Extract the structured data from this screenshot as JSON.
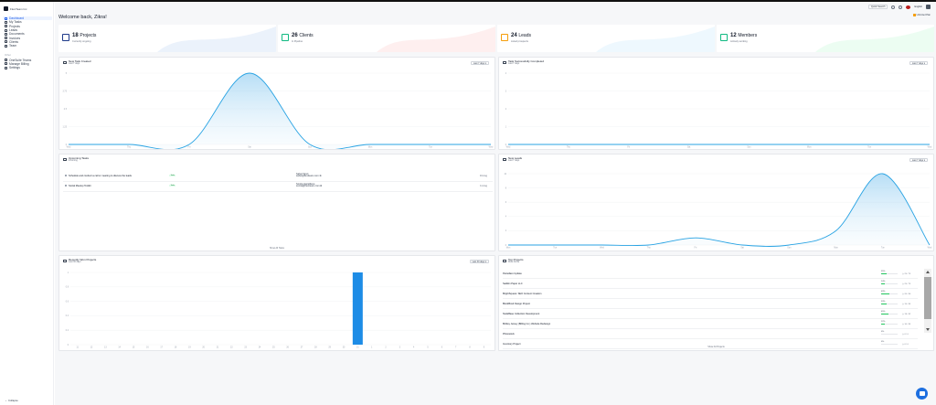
{
  "brand": {
    "name": "FlexiTeam Inc"
  },
  "nav": {
    "items": [
      {
        "label": "Dashboard",
        "icon": "grid-icon",
        "active": true
      },
      {
        "label": "My Tasks",
        "icon": "checklist-icon"
      },
      {
        "label": "Projects",
        "icon": "folder-icon"
      },
      {
        "label": "Leads",
        "icon": "user-search-icon"
      },
      {
        "label": "Documents",
        "icon": "document-icon"
      },
      {
        "label": "Invoices",
        "icon": "invoice-icon"
      },
      {
        "label": "Clients",
        "icon": "clients-icon"
      },
      {
        "label": "Team",
        "icon": "team-icon"
      }
    ],
    "section": "Other",
    "other_items": [
      {
        "label": "OneSuite Teams",
        "icon": "apps-icon"
      },
      {
        "label": "Manage Billing",
        "icon": "billing-icon"
      },
      {
        "label": "Settings",
        "icon": "gear-icon"
      }
    ],
    "collapse": "Collapse"
  },
  "topbar": {
    "welcome": "Welcome back, Zikra!",
    "quick_search": "Quick Search",
    "language": "English",
    "badge": "Unlimited Plan"
  },
  "stats": [
    {
      "value": "18",
      "label": "Projects",
      "sub": "Currently ongoing",
      "color": "#1e3a8a",
      "wave": "#dbe7f8"
    },
    {
      "value": "26",
      "label": "Clients",
      "sub": "In Pipeline",
      "color": "#10b981",
      "wave": "#fde2e2"
    },
    {
      "value": "24",
      "label": "Leads",
      "sub": "Listed prospects",
      "color": "#f59e0b",
      "wave": "#e0f2fe"
    },
    {
      "value": "12",
      "label": "Members",
      "sub": "Actively working",
      "color": "#10b981",
      "wave": "#dcfce7"
    }
  ],
  "tasks_created": {
    "title": "New Task Created",
    "sub": "Last 7 days",
    "range": "Last 7 days"
  },
  "tasks_completed": {
    "title": "Task Successfully Completed",
    "sub": "Last 7 days",
    "range": "Last 7 days"
  },
  "upcoming": {
    "title": "Upcoming Tasks",
    "sub": "Incoming",
    "rows": [
      {
        "name": "Schedule and conduct a call or meeting to discuss the leads",
        "tag": "Todo",
        "who_name": "Sahel Tanzi",
        "who_email": "sahel@flexiteam.com",
        "date": "04 Aug"
      },
      {
        "name": "Social Meetup Toolkit",
        "tag": "Todo",
        "who_name": "Sonita Hazeldene",
        "who_email": "sonita@flexiteam.com",
        "date": "11 Aug"
      }
    ],
    "show_all": "Show All Tasks"
  },
  "new_leads": {
    "title": "New Leads",
    "sub": "Last 7 days",
    "range": "Last 7 days"
  },
  "recently_won": {
    "title": "Recently Won Projects",
    "sub": "Last 30 days",
    "range": "Last 30 days"
  },
  "top_projects": {
    "title": "Top Projects",
    "sub": "Most Active",
    "rows": [
      {
        "name": "Pantellaro Update",
        "pct": "35%",
        "progress": 0.35,
        "hrs": "25 / 73"
      },
      {
        "name": "Sadikin Paper LLC",
        "pct": "24%",
        "progress": 0.24,
        "hrs": "25 / 73"
      },
      {
        "name": "BrightSquare: SEO Content Creation",
        "pct": "49%",
        "progress": 0.49,
        "hrs": "20 / 40"
      },
      {
        "name": "BlockBoxd Design Project",
        "pct": "33%",
        "progress": 0.33,
        "hrs": "15 / 45"
      },
      {
        "name": "NodeBase Collection Development",
        "pct": "45%",
        "progress": 0.45,
        "hrs": "19 / 42"
      },
      {
        "name": "Brittley Jersey (Billing Co.) Website Redesign",
        "pct": "22%",
        "progress": 0.22,
        "hrs": "10 / 45"
      },
      {
        "name": "Photostock",
        "pct": "0%",
        "progress": 0.0,
        "hrs": "0 / 0"
      },
      {
        "name": "Inventory Project",
        "pct": "0%",
        "progress": 0.0,
        "hrs": "0 / 0"
      }
    ],
    "show_all": "Show All Projects"
  },
  "chart_data": [
    {
      "type": "area",
      "name": "New Task Created",
      "x": [
        "Wed",
        "Thu",
        "Fri",
        "Sat",
        "Sun",
        "Mon",
        "Tue",
        "Wed"
      ],
      "values": [
        0,
        0,
        0,
        5,
        0,
        0,
        0,
        0
      ],
      "yticks": [
        "0",
        "1.25",
        "2.5",
        "3.75",
        "5"
      ]
    },
    {
      "type": "area",
      "name": "Task Successfully Completed",
      "x": [
        "Wed",
        "Thu",
        "Fri",
        "Sat",
        "Sun",
        "Mon",
        "Tue",
        "Wed"
      ],
      "values": [
        0,
        0,
        0,
        0,
        0,
        0,
        0,
        0
      ],
      "yticks": [
        "0",
        "1",
        "2",
        "3",
        "4"
      ]
    },
    {
      "type": "area",
      "name": "New Leads",
      "x": [
        "Mon",
        "Tue",
        "Wed",
        "Thu",
        "Fri",
        "Sat",
        "Sun",
        "Mon",
        "Tue",
        "Wed"
      ],
      "values": [
        0,
        0,
        0,
        0,
        1,
        0,
        0,
        2,
        10,
        0
      ],
      "yticks": [
        "0",
        "2",
        "4",
        "6",
        "8",
        "10"
      ]
    },
    {
      "type": "bar",
      "name": "Recently Won Projects",
      "x": [
        "11",
        "12",
        "13",
        "14",
        "15",
        "16",
        "17",
        "18",
        "19",
        "20",
        "21",
        "22",
        "23",
        "24",
        "25",
        "26",
        "27",
        "28",
        "29",
        "30",
        "31",
        "1",
        "2",
        "3",
        "4",
        "5",
        "6",
        "7",
        "8",
        "9"
      ],
      "values": [
        0,
        0,
        0,
        0,
        0,
        0,
        0,
        0,
        0,
        0,
        0,
        0,
        0,
        0,
        0,
        0,
        0,
        0,
        0,
        0,
        1,
        0,
        0,
        0,
        0,
        0,
        0,
        0,
        0,
        0
      ],
      "yticks": [
        "0",
        "0.2",
        "0.4",
        "0.6",
        "0.8",
        "1"
      ],
      "color": "#1d8ce6"
    }
  ]
}
